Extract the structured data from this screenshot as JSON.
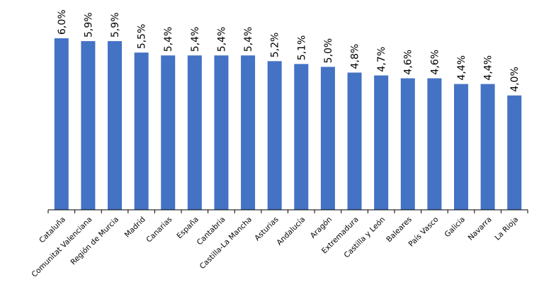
{
  "chart_data": {
    "type": "bar",
    "categories": [
      "Cataluña",
      "Comunitat Valenciana",
      "Región de Murcia",
      "Madrid",
      "Canarias",
      "España",
      "Cantabria",
      "Castilla-La Mancha",
      "Asturias",
      "Andalucía",
      "Aragón",
      "Extremadura",
      "Castilla y León",
      "Baleares",
      "País Vasco",
      "Galicia",
      "Navarra",
      "La Rioja"
    ],
    "values": [
      6.0,
      5.9,
      5.9,
      5.5,
      5.4,
      5.4,
      5.4,
      5.4,
      5.2,
      5.1,
      5.0,
      4.8,
      4.7,
      4.6,
      4.6,
      4.4,
      4.4,
      4.0
    ],
    "value_labels": [
      "6,0%",
      "5,9%",
      "5,9%",
      "5,5%",
      "5,4%",
      "5,4%",
      "5,4%",
      "5,4%",
      "5,2%",
      "5,1%",
      "5,0%",
      "4,8%",
      "4,7%",
      "4,6%",
      "4,6%",
      "4,4%",
      "4,4%",
      "4,0%"
    ],
    "color": "#4472c4"
  }
}
